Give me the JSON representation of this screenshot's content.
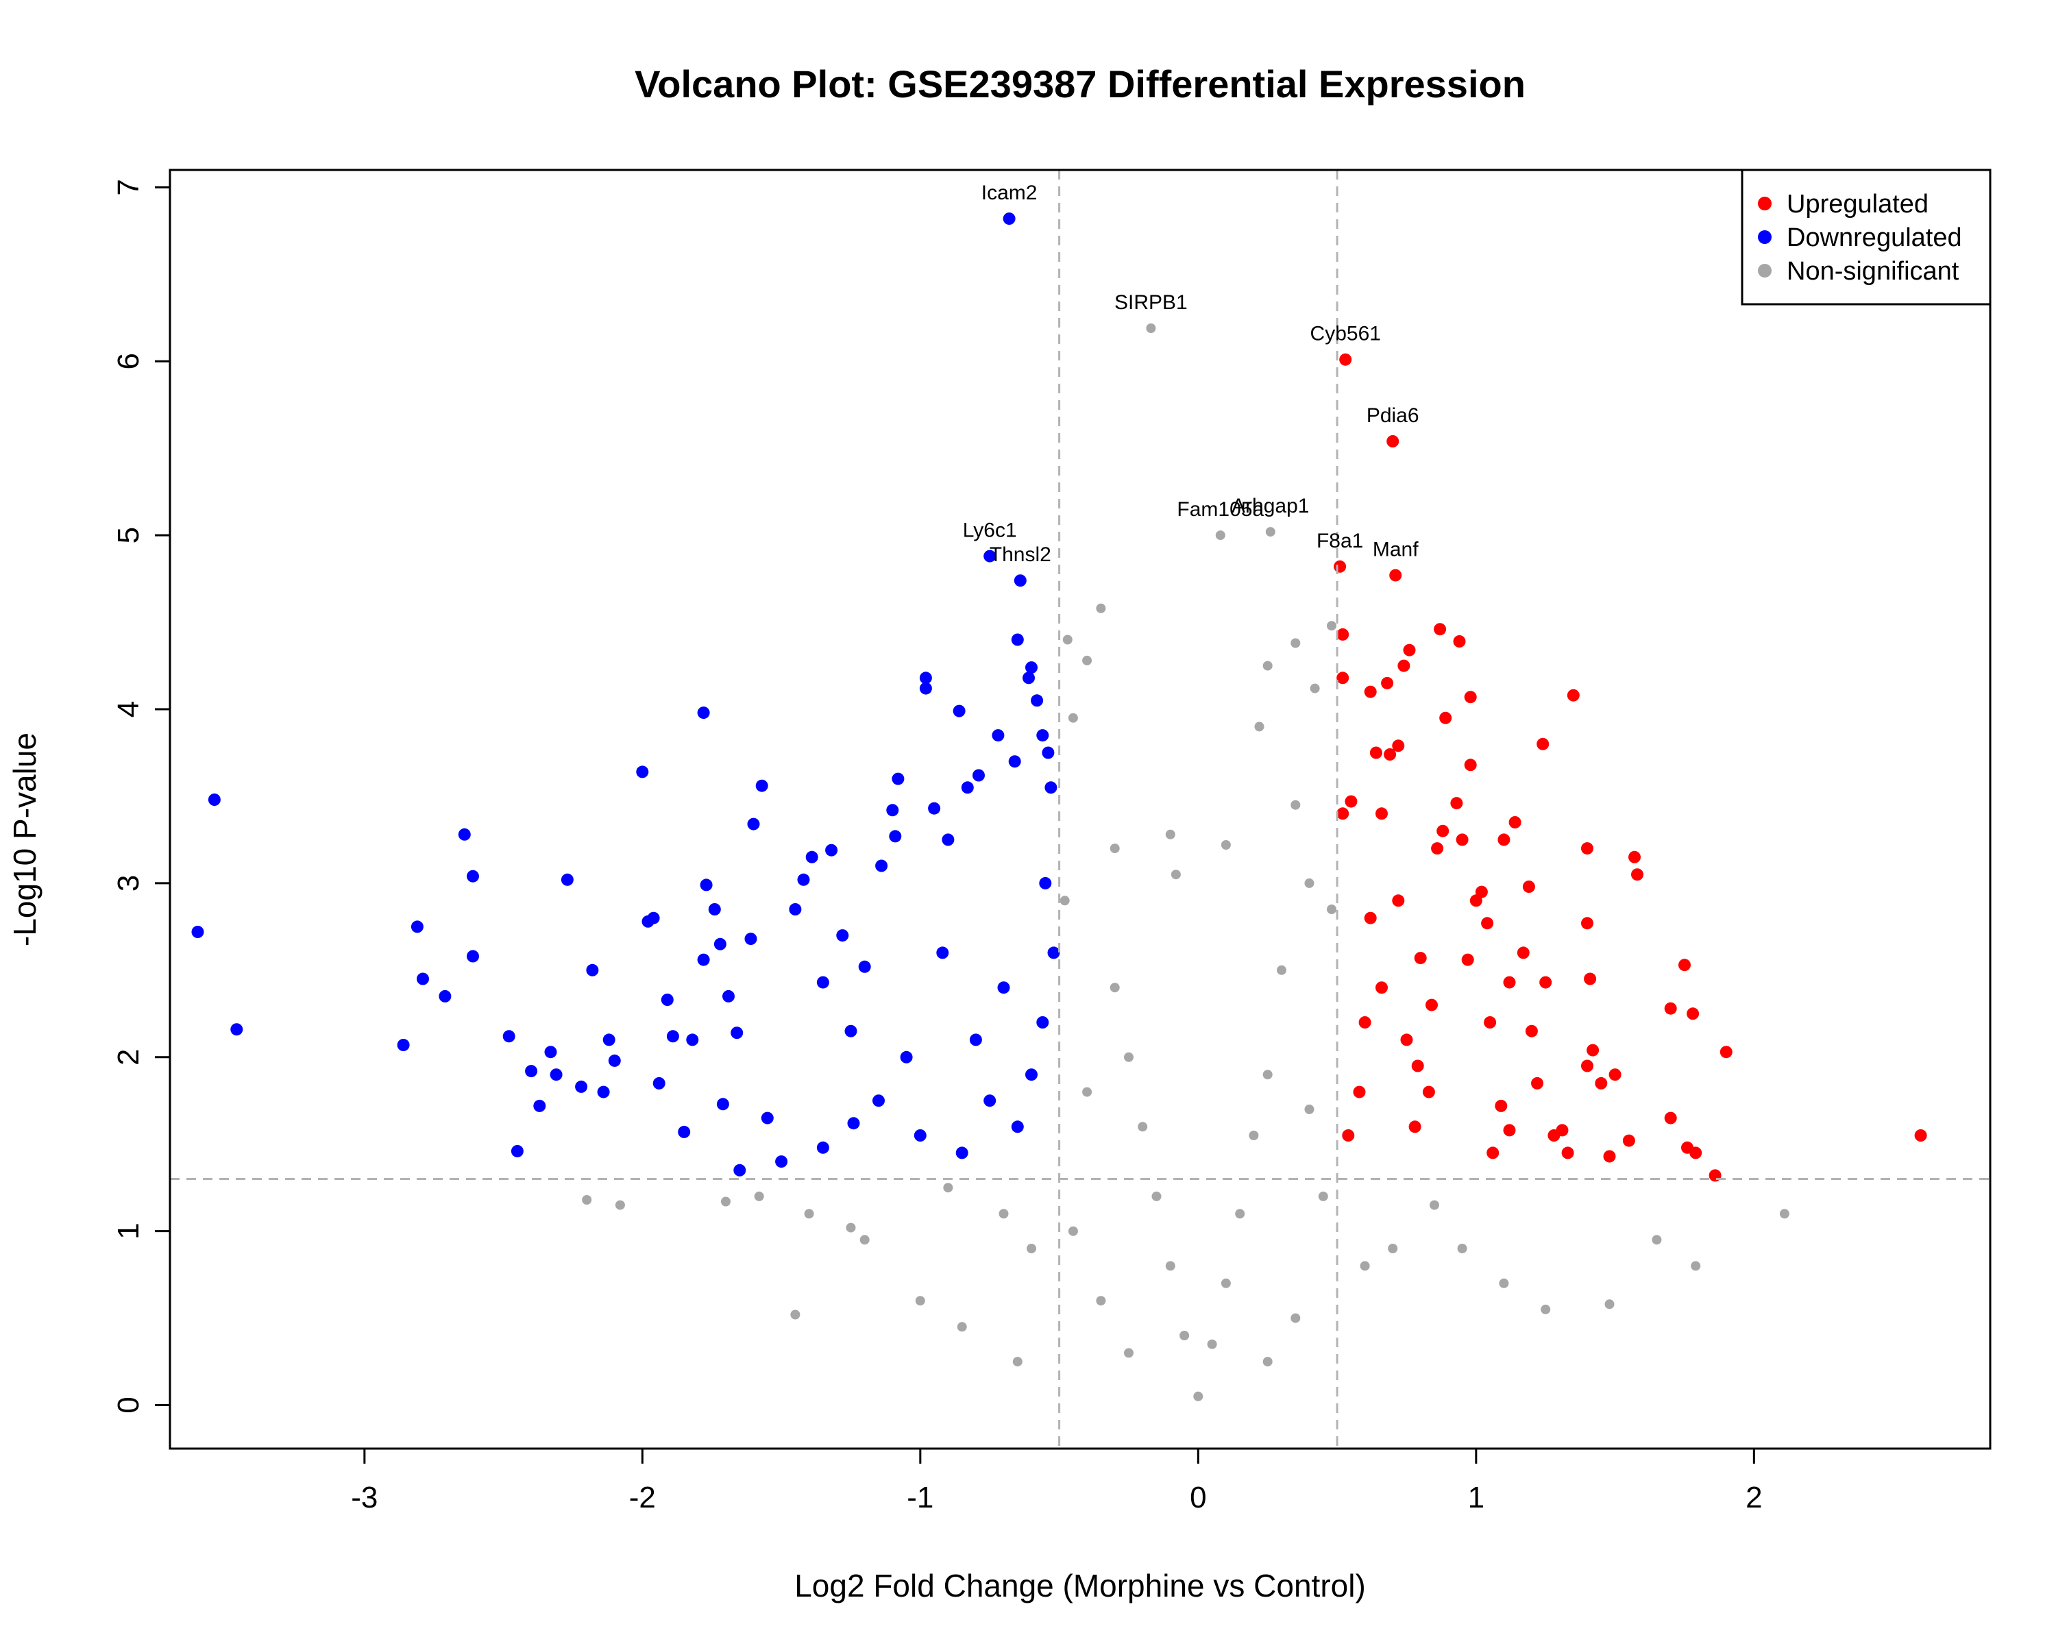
{
  "chart_data": {
    "type": "scatter",
    "title": "Volcano Plot: GSE239387 Differential Expression",
    "xlabel": "Log2 Fold Change (Morphine vs Control)",
    "ylabel": "-Log10 P-value",
    "xlim": [
      -3.7,
      2.85
    ],
    "ylim": [
      -0.25,
      7.1
    ],
    "x_ticks": [
      -3,
      -2,
      -1,
      0,
      1,
      2
    ],
    "x_tick_labels": [
      "-3",
      "-2",
      "-1",
      "0",
      "1",
      "2"
    ],
    "y_ticks": [
      0,
      1,
      2,
      3,
      4,
      5,
      6,
      7
    ],
    "y_tick_labels": [
      "0",
      "1",
      "2",
      "3",
      "4",
      "5",
      "6",
      "7"
    ],
    "thresholds": {
      "log2fc": [
        -0.5,
        0.5
      ],
      "neg_log10_p": 1.3
    },
    "grid": false,
    "legend_position": "top-right",
    "legend": [
      {
        "label": "Upregulated",
        "color": "#ff0000"
      },
      {
        "label": "Downregulated",
        "color": "#0000ff"
      },
      {
        "label": "Non-significant",
        "color": "#a6a6a6"
      }
    ],
    "colors": {
      "up": "#ff0000",
      "down": "#0000ff",
      "ns": "#a6a6a6",
      "threshold_line": "#b3b3b3"
    },
    "labeled_genes": [
      {
        "gene": "Icam2",
        "x": -0.68,
        "y": 6.82
      },
      {
        "gene": "SIRPB1",
        "x": -0.17,
        "y": 6.19
      },
      {
        "gene": "Cyb561",
        "x": 0.53,
        "y": 6.01
      },
      {
        "gene": "Pdia6",
        "x": 0.7,
        "y": 5.54
      },
      {
        "gene": "Fam105a",
        "x": 0.08,
        "y": 5.0
      },
      {
        "gene": "Arhgap1",
        "x": 0.26,
        "y": 5.02
      },
      {
        "gene": "F8a1",
        "x": 0.51,
        "y": 4.82
      },
      {
        "gene": "Manf",
        "x": 0.71,
        "y": 4.77
      },
      {
        "gene": "Ly6c1",
        "x": -0.75,
        "y": 4.88
      },
      {
        "gene": "Thnsl2",
        "x": -0.64,
        "y": 4.74
      }
    ],
    "series": [
      {
        "name": "Upregulated",
        "points": [
          [
            2.6,
            1.55
          ],
          [
            1.9,
            2.03
          ],
          [
            1.86,
            1.32
          ],
          [
            1.79,
            1.45
          ],
          [
            1.78,
            2.25
          ],
          [
            1.76,
            1.48
          ],
          [
            1.75,
            2.53
          ],
          [
            1.7,
            2.28
          ],
          [
            1.7,
            1.65
          ],
          [
            1.58,
            3.05
          ],
          [
            1.57,
            3.15
          ],
          [
            1.55,
            1.52
          ],
          [
            1.5,
            1.9
          ],
          [
            1.48,
            1.43
          ],
          [
            1.45,
            1.85
          ],
          [
            1.42,
            2.04
          ],
          [
            1.41,
            2.45
          ],
          [
            1.4,
            3.2
          ],
          [
            1.4,
            2.77
          ],
          [
            1.4,
            1.95
          ],
          [
            1.35,
            4.08
          ],
          [
            1.33,
            1.45
          ],
          [
            1.31,
            1.58
          ],
          [
            1.28,
            1.55
          ],
          [
            1.25,
            2.43
          ],
          [
            1.24,
            3.8
          ],
          [
            1.22,
            1.85
          ],
          [
            1.2,
            2.15
          ],
          [
            1.19,
            2.98
          ],
          [
            1.17,
            2.6
          ],
          [
            1.14,
            3.35
          ],
          [
            1.12,
            1.58
          ],
          [
            1.12,
            2.43
          ],
          [
            1.1,
            3.25
          ],
          [
            1.09,
            1.72
          ],
          [
            1.06,
            1.45
          ],
          [
            1.05,
            2.2
          ],
          [
            1.04,
            2.77
          ],
          [
            1.02,
            2.95
          ],
          [
            1.0,
            2.9
          ],
          [
            0.98,
            3.68
          ],
          [
            0.98,
            4.07
          ],
          [
            0.97,
            2.56
          ],
          [
            0.95,
            3.25
          ],
          [
            0.94,
            4.39
          ],
          [
            0.93,
            3.46
          ],
          [
            0.89,
            3.95
          ],
          [
            0.88,
            3.3
          ],
          [
            0.87,
            4.46
          ],
          [
            0.86,
            3.2
          ],
          [
            0.84,
            2.3
          ],
          [
            0.83,
            1.8
          ],
          [
            0.8,
            2.57
          ],
          [
            0.78,
            1.6
          ],
          [
            0.76,
            4.34
          ],
          [
            0.74,
            4.25
          ],
          [
            0.72,
            3.79
          ],
          [
            0.71,
            4.77
          ],
          [
            0.7,
            5.54
          ],
          [
            0.69,
            3.74
          ],
          [
            0.68,
            4.15
          ],
          [
            0.66,
            3.4
          ],
          [
            0.64,
            3.75
          ],
          [
            0.62,
            4.1
          ],
          [
            0.6,
            2.2
          ],
          [
            0.58,
            1.8
          ],
          [
            0.55,
            3.47
          ],
          [
            0.54,
            1.55
          ],
          [
            0.53,
            6.01
          ],
          [
            0.52,
            4.43
          ],
          [
            0.52,
            4.18
          ],
          [
            0.51,
            4.82
          ],
          [
            0.52,
            3.4
          ],
          [
            0.62,
            2.8
          ],
          [
            0.66,
            2.4
          ],
          [
            0.72,
            2.9
          ],
          [
            0.75,
            2.1
          ],
          [
            0.79,
            1.95
          ]
        ]
      },
      {
        "name": "Downregulated",
        "points": [
          [
            -3.6,
            2.72
          ],
          [
            -3.54,
            3.48
          ],
          [
            -3.46,
            2.16
          ],
          [
            -2.86,
            2.07
          ],
          [
            -2.81,
            2.75
          ],
          [
            -2.79,
            2.45
          ],
          [
            -2.71,
            2.35
          ],
          [
            -2.64,
            3.28
          ],
          [
            -2.61,
            3.04
          ],
          [
            -2.61,
            2.58
          ],
          [
            -2.48,
            2.12
          ],
          [
            -2.45,
            1.46
          ],
          [
            -2.4,
            1.92
          ],
          [
            -2.37,
            1.72
          ],
          [
            -2.33,
            2.03
          ],
          [
            -2.31,
            1.9
          ],
          [
            -2.27,
            3.02
          ],
          [
            -2.22,
            1.83
          ],
          [
            -2.18,
            2.5
          ],
          [
            -2.14,
            1.8
          ],
          [
            -2.12,
            2.1
          ],
          [
            -2.1,
            1.98
          ],
          [
            -2.0,
            3.64
          ],
          [
            -1.98,
            2.78
          ],
          [
            -1.96,
            2.8
          ],
          [
            -1.94,
            1.85
          ],
          [
            -1.91,
            2.33
          ],
          [
            -1.89,
            2.12
          ],
          [
            -1.85,
            1.57
          ],
          [
            -1.82,
            2.1
          ],
          [
            -1.78,
            3.98
          ],
          [
            -1.78,
            2.56
          ],
          [
            -1.77,
            2.99
          ],
          [
            -1.74,
            2.85
          ],
          [
            -1.72,
            2.65
          ],
          [
            -1.71,
            1.73
          ],
          [
            -1.69,
            2.35
          ],
          [
            -1.66,
            2.14
          ],
          [
            -1.61,
            2.68
          ],
          [
            -1.6,
            3.34
          ],
          [
            -1.57,
            3.56
          ],
          [
            -1.5,
            1.4
          ],
          [
            -1.45,
            2.85
          ],
          [
            -1.42,
            3.02
          ],
          [
            -1.39,
            3.15
          ],
          [
            -1.35,
            2.43
          ],
          [
            -1.32,
            3.19
          ],
          [
            -1.28,
            2.7
          ],
          [
            -1.24,
            1.62
          ],
          [
            -1.2,
            2.52
          ],
          [
            -1.14,
            3.1
          ],
          [
            -1.1,
            3.42
          ],
          [
            -1.09,
            3.27
          ],
          [
            -1.08,
            3.6
          ],
          [
            -0.98,
            4.18
          ],
          [
            -0.98,
            4.12
          ],
          [
            -0.95,
            3.43
          ],
          [
            -0.9,
            3.25
          ],
          [
            -0.86,
            3.99
          ],
          [
            -0.83,
            3.55
          ],
          [
            -0.79,
            3.62
          ],
          [
            -0.75,
            4.88
          ],
          [
            -0.72,
            3.85
          ],
          [
            -0.68,
            6.82
          ],
          [
            -0.66,
            3.7
          ],
          [
            -0.65,
            4.4
          ],
          [
            -0.64,
            4.74
          ],
          [
            -0.61,
            4.18
          ],
          [
            -0.6,
            4.24
          ],
          [
            -0.58,
            4.05
          ],
          [
            -0.56,
            3.85
          ],
          [
            -0.54,
            3.75
          ],
          [
            -0.53,
            3.55
          ],
          [
            -0.55,
            3.0
          ],
          [
            -0.52,
            2.6
          ],
          [
            -0.56,
            2.2
          ],
          [
            -0.6,
            1.9
          ],
          [
            -0.65,
            1.6
          ],
          [
            -0.7,
            2.4
          ],
          [
            -0.75,
            1.75
          ],
          [
            -0.8,
            2.1
          ],
          [
            -0.85,
            1.45
          ],
          [
            -0.92,
            2.6
          ],
          [
            -1.0,
            1.55
          ],
          [
            -1.05,
            2.0
          ],
          [
            -1.15,
            1.75
          ],
          [
            -1.25,
            2.15
          ],
          [
            -1.35,
            1.48
          ],
          [
            -1.55,
            1.65
          ],
          [
            -1.65,
            1.35
          ]
        ]
      },
      {
        "name": "Non-significant",
        "points": [
          [
            -0.17,
            6.19
          ],
          [
            0.08,
            5.0
          ],
          [
            0.26,
            5.02
          ],
          [
            -0.35,
            4.58
          ],
          [
            0.48,
            4.48
          ],
          [
            -0.47,
            4.4
          ],
          [
            -0.4,
            4.28
          ],
          [
            0.35,
            4.38
          ],
          [
            0.25,
            4.25
          ],
          [
            0.42,
            4.12
          ],
          [
            -0.45,
            3.95
          ],
          [
            0.22,
            3.9
          ],
          [
            -0.1,
            3.28
          ],
          [
            0.1,
            3.22
          ],
          [
            -0.08,
            3.05
          ],
          [
            0.35,
            3.45
          ],
          [
            -0.3,
            3.2
          ],
          [
            0.4,
            3.0
          ],
          [
            2.11,
            1.1
          ],
          [
            1.79,
            0.8
          ],
          [
            1.65,
            0.95
          ],
          [
            1.48,
            0.58
          ],
          [
            1.25,
            0.55
          ],
          [
            1.1,
            0.7
          ],
          [
            0.95,
            0.9
          ],
          [
            -2.2,
            1.18
          ],
          [
            -2.08,
            1.15
          ],
          [
            -1.7,
            1.17
          ],
          [
            -1.58,
            1.2
          ],
          [
            -1.45,
            0.52
          ],
          [
            -1.4,
            1.1
          ],
          [
            -1.25,
            1.02
          ],
          [
            -1.2,
            0.95
          ],
          [
            -1.0,
            0.6
          ],
          [
            -0.85,
            0.45
          ],
          [
            -0.65,
            0.25
          ],
          [
            -0.3,
            2.4
          ],
          [
            0.3,
            2.5
          ],
          [
            -0.25,
            2.0
          ],
          [
            0.25,
            1.9
          ],
          [
            -0.2,
            1.6
          ],
          [
            0.2,
            1.55
          ],
          [
            -0.15,
            1.2
          ],
          [
            0.15,
            1.1
          ],
          [
            -0.1,
            0.8
          ],
          [
            0.1,
            0.7
          ],
          [
            -0.05,
            0.4
          ],
          [
            0.05,
            0.35
          ],
          [
            0.0,
            0.05
          ],
          [
            -0.4,
            1.8
          ],
          [
            0.4,
            1.7
          ],
          [
            -0.45,
            1.0
          ],
          [
            0.45,
            1.2
          ],
          [
            -0.35,
            0.6
          ],
          [
            0.35,
            0.5
          ],
          [
            -0.7,
            1.1
          ],
          [
            0.7,
            0.9
          ],
          [
            -0.9,
            1.25
          ],
          [
            0.85,
            1.15
          ],
          [
            -0.6,
            0.9
          ],
          [
            0.6,
            0.8
          ],
          [
            -0.25,
            0.3
          ],
          [
            0.25,
            0.25
          ],
          [
            -0.48,
            2.9
          ],
          [
            0.48,
            2.85
          ]
        ]
      }
    ]
  }
}
